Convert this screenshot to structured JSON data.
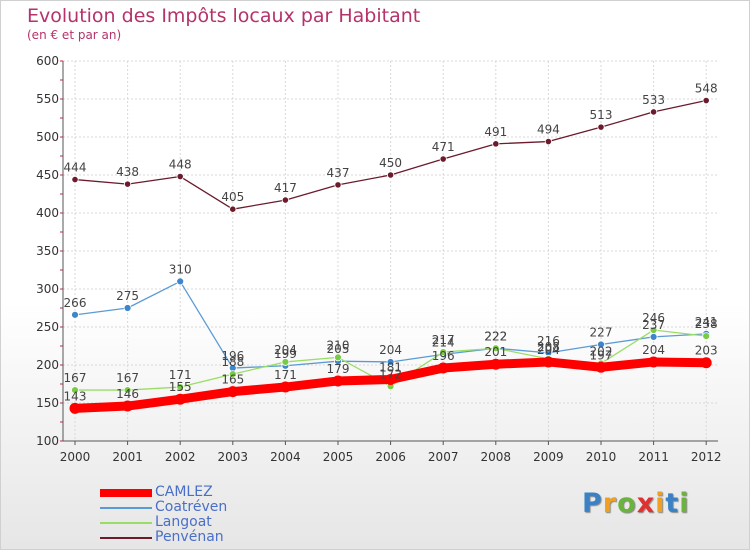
{
  "chart_data": {
    "type": "line",
    "title": "Evolution des Impôts locaux par Habitant",
    "subtitle": "(en € et par an)",
    "x": [
      "2000",
      "2001",
      "2002",
      "2003",
      "2004",
      "2005",
      "2006",
      "2007",
      "2008",
      "2009",
      "2010",
      "2011",
      "2012"
    ],
    "yticks": [
      100,
      150,
      200,
      250,
      300,
      350,
      400,
      450,
      500,
      550,
      600
    ],
    "ylim": [
      100,
      600
    ],
    "grid": true,
    "legend_position": "bottom-left",
    "series": [
      {
        "name": "CAMLEZ",
        "color": "#ff0000",
        "values": [
          143,
          146,
          155,
          165,
          171,
          179,
          181,
          196,
          201,
          204,
          197,
          204,
          203
        ]
      },
      {
        "name": "Coatréven",
        "color": "#5b9bd5",
        "values": [
          266,
          275,
          310,
          196,
          199,
          205,
          204,
          214,
          222,
          216,
          227,
          237,
          241
        ]
      },
      {
        "name": "Langoat",
        "color": "#99dd66",
        "values": [
          167,
          167,
          171,
          188,
          204,
          210,
          172,
          217,
          222,
          208,
          202,
          246,
          238
        ]
      },
      {
        "name": "Penvénan",
        "color": "#6b1b2b",
        "values": [
          444,
          438,
          448,
          405,
          417,
          437,
          450,
          471,
          491,
          494,
          513,
          533,
          548
        ]
      }
    ]
  },
  "logo": {
    "letters": [
      "P",
      "r",
      "o",
      "x",
      "i",
      "t",
      "i"
    ],
    "colors": [
      "#3b82c4",
      "#f0a020",
      "#6cb33e",
      "#e03030",
      "#f0a020",
      "#3b82c4",
      "#6cb33e"
    ]
  }
}
